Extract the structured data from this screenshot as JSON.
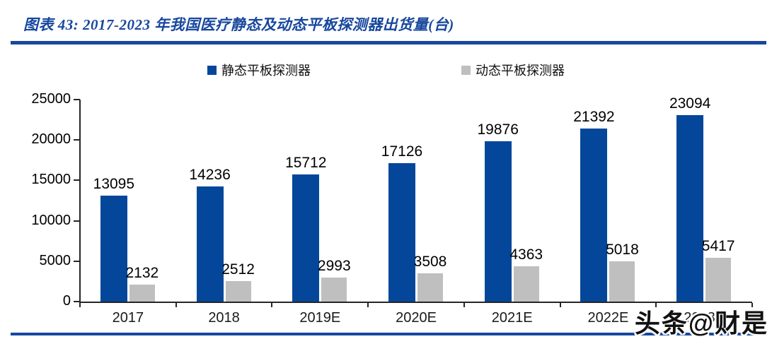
{
  "header": {
    "title": "图表 43:  2017-2023 年我国医疗静态及动态平板探测器出货量(台)"
  },
  "watermark": {
    "text": "头条@财是"
  },
  "chart_data": {
    "type": "bar",
    "title": "2017-2023 年我国医疗静态及动态平板探测器出货量(台)",
    "categories": [
      "2017",
      "2018",
      "2019E",
      "2020E",
      "2021E",
      "2022E",
      "2023E"
    ],
    "series": [
      {
        "name": "静态平板探测器",
        "color": "#04479A",
        "values": [
          13095,
          14236,
          15712,
          17126,
          19876,
          21392,
          23094
        ]
      },
      {
        "name": "动态平板探测器",
        "color": "#BFBFBF",
        "values": [
          2132,
          2512,
          2993,
          3508,
          4363,
          5018,
          5417
        ]
      }
    ],
    "ylim": [
      0,
      25000
    ],
    "yticks": [
      0,
      5000,
      10000,
      15000,
      20000,
      25000
    ],
    "xlabel": "",
    "ylabel": "",
    "legend_position": "top",
    "grid": false,
    "data_labels": true
  },
  "colors": {
    "accent_blue": "#17479E",
    "bar_blue": "#04479A",
    "bar_gray": "#BFBFBF",
    "axis": "#262626",
    "text": "#000000"
  }
}
